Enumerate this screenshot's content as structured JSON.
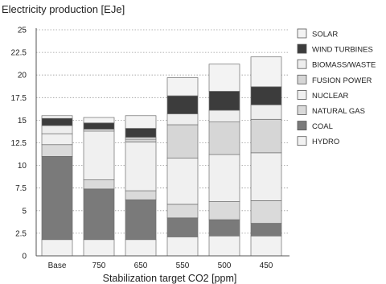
{
  "chart_data": {
    "type": "bar",
    "stacked": true,
    "title": "Electricity production [EJe]",
    "xlabel": "Stabilization target CO2 [ppm]",
    "ylabel": "",
    "ylim": [
      0,
      25
    ],
    "yticks": [
      "0",
      "2.5",
      "5",
      "7.5",
      "10",
      "12.5",
      "15",
      "17.5",
      "20",
      "22.5",
      "25"
    ],
    "grid": "horizontal dotted",
    "legend_position": "right",
    "categories": [
      "Base",
      "750",
      "650",
      "550",
      "500",
      "450"
    ],
    "series": [
      {
        "name": "HYDRO",
        "color": "#f2f2f2",
        "values": [
          1.8,
          1.8,
          1.8,
          2.1,
          2.2,
          2.2
        ]
      },
      {
        "name": "COAL",
        "color": "#7a7a7a",
        "values": [
          9.2,
          5.6,
          4.4,
          2.1,
          1.8,
          1.4
        ]
      },
      {
        "name": "NATURAL GAS",
        "color": "#dadada",
        "values": [
          1.3,
          1.0,
          1.0,
          1.5,
          2.0,
          2.5
        ]
      },
      {
        "name": "NUCLEAR",
        "color": "#f0f0f0",
        "values": [
          1.2,
          5.4,
          5.4,
          5.1,
          5.2,
          5.3
        ]
      },
      {
        "name": "FUSION POWER",
        "color": "#d6d6d6",
        "values": [
          0.0,
          0.0,
          0.3,
          3.7,
          3.6,
          3.7
        ]
      },
      {
        "name": "BIOMASS/WASTE",
        "color": "#eeeeee",
        "values": [
          0.9,
          0.2,
          0.2,
          1.2,
          1.3,
          1.6
        ]
      },
      {
        "name": "WIND TURBINES",
        "color": "#3c3c3c",
        "values": [
          0.8,
          0.7,
          1.0,
          2.0,
          2.1,
          2.0
        ]
      },
      {
        "name": "SOLAR",
        "color": "#f3f3f3",
        "values": [
          0.3,
          0.6,
          1.4,
          2.0,
          3.0,
          3.3
        ]
      }
    ],
    "legend_order": [
      "SOLAR",
      "WIND TURBINES",
      "BIOMASS/WASTE",
      "FUSION POWER",
      "NUCLEAR",
      "NATURAL GAS",
      "COAL",
      "HYDRO"
    ]
  }
}
